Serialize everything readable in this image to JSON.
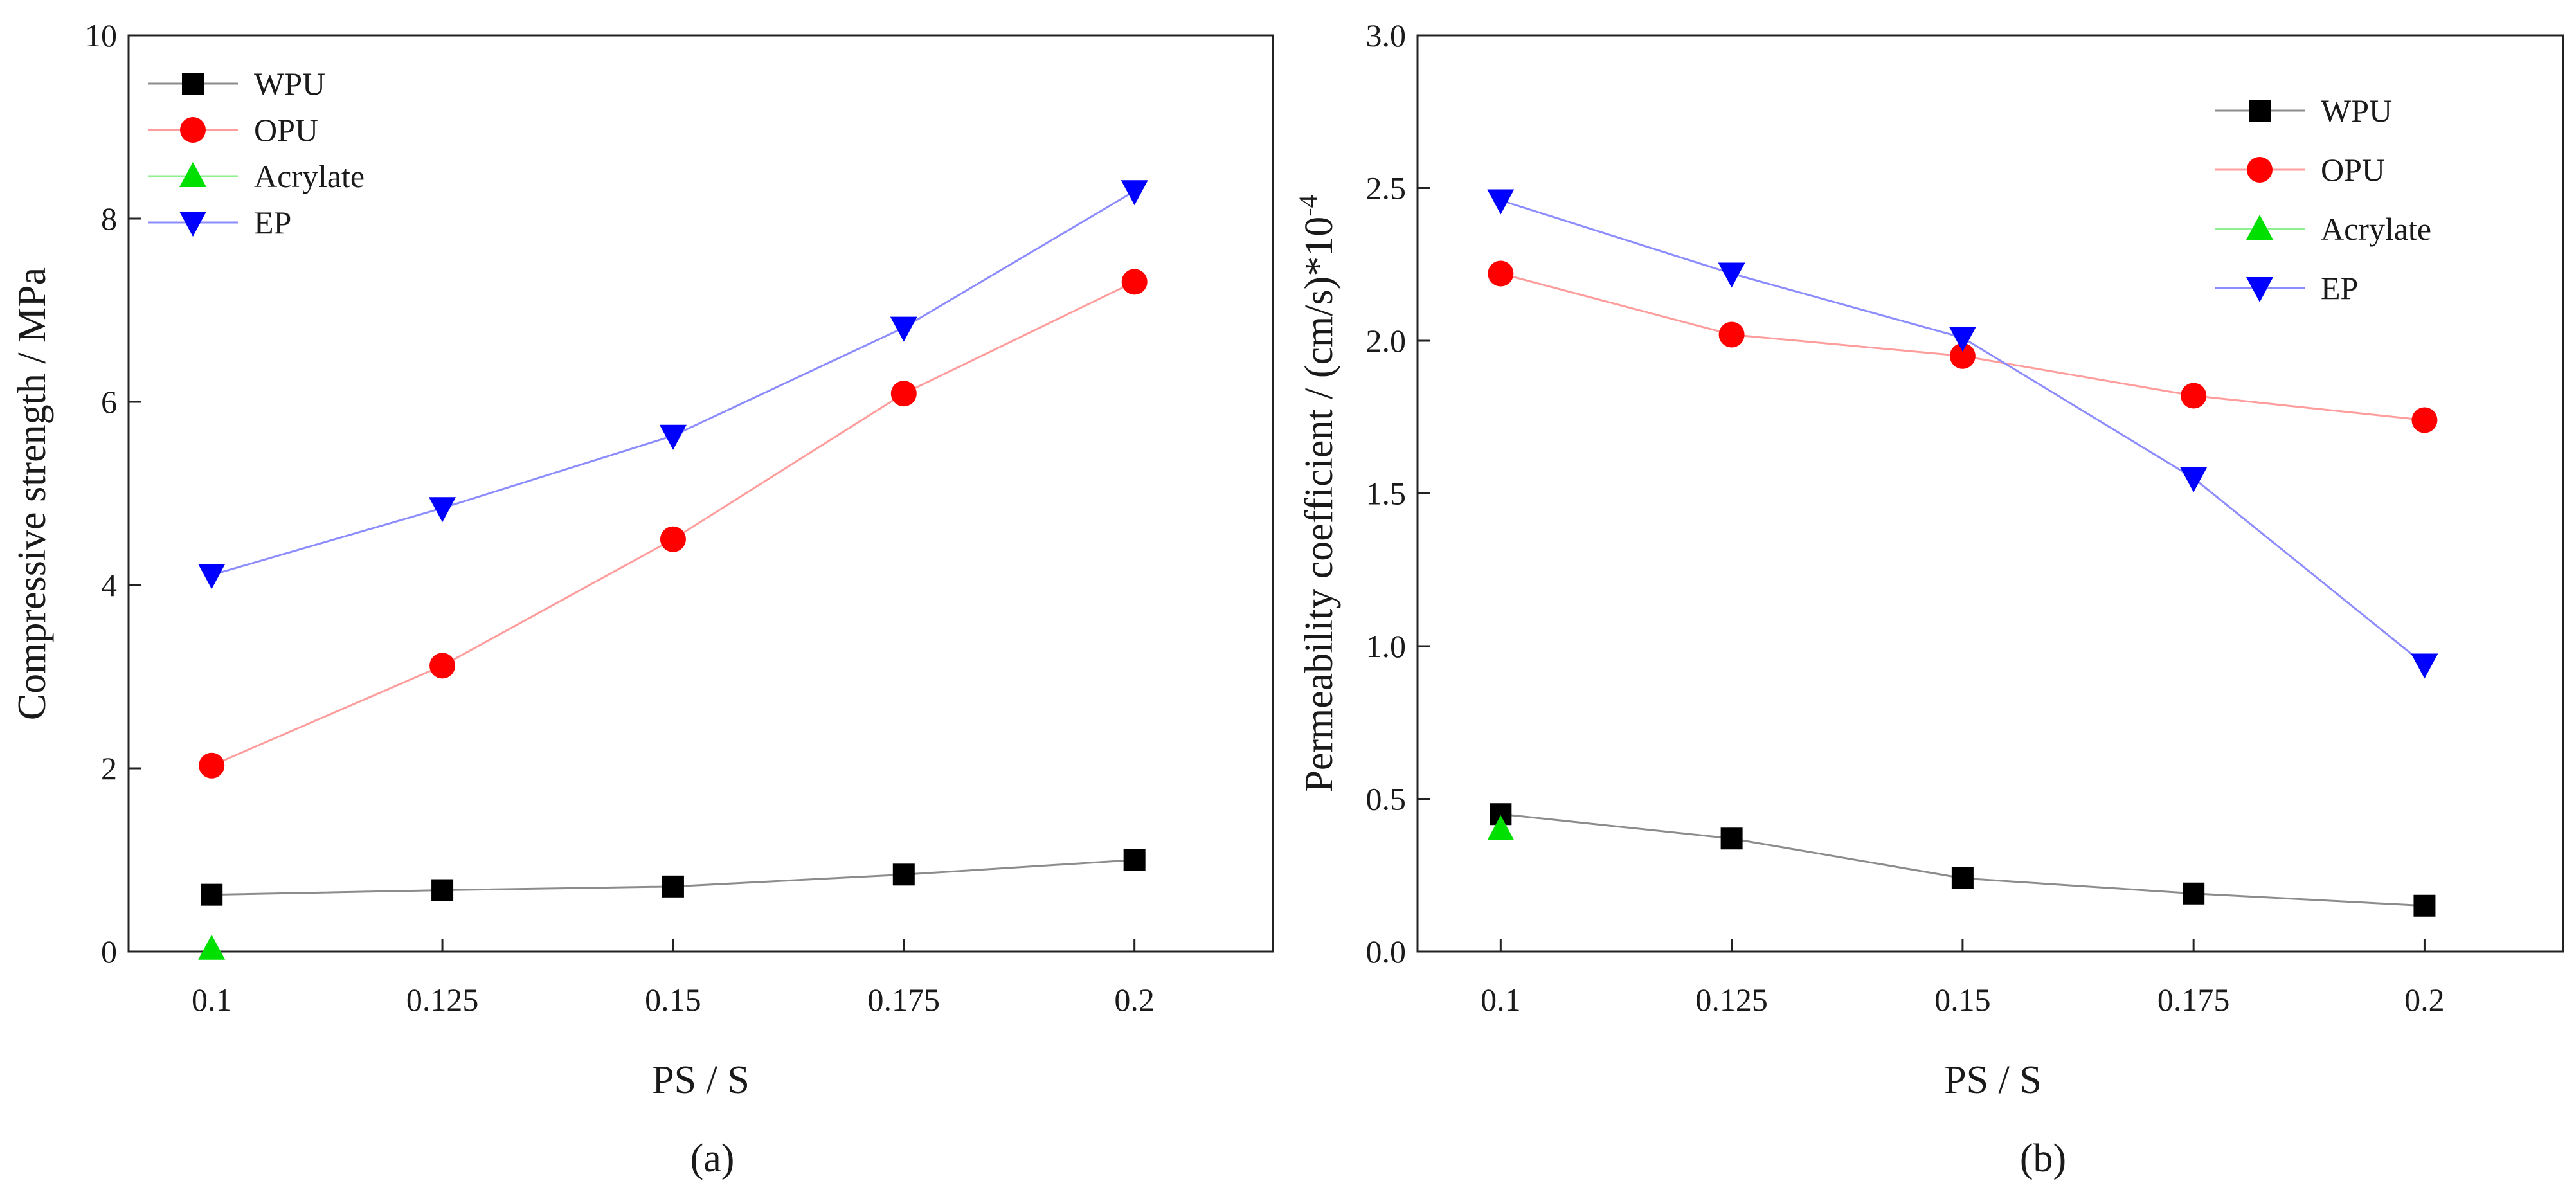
{
  "chart_data": [
    {
      "id": "a",
      "type": "line",
      "caption": "(a)",
      "xlabel": "PS / S",
      "ylabel": "Compressive strength / MPa",
      "x": [
        0.1,
        0.125,
        0.15,
        0.175,
        0.2
      ],
      "x_tick_labels": [
        "0.1",
        "0.125",
        "0.15",
        "0.175",
        "0.2"
      ],
      "xlim": [
        0.091,
        0.215
      ],
      "ylim": [
        0,
        10
      ],
      "y_ticks": [
        0,
        2,
        4,
        6,
        8,
        10
      ],
      "y_tick_labels": [
        "0",
        "2",
        "4",
        "6",
        "8",
        "10"
      ],
      "legend_position": "top-left",
      "series": [
        {
          "name": "WPU",
          "marker": "square",
          "color": "#000000",
          "line_color": "#8c8c8c",
          "x": [
            0.1,
            0.125,
            0.15,
            0.175,
            0.2
          ],
          "values": [
            0.62,
            0.67,
            0.71,
            0.84,
            1.0
          ]
        },
        {
          "name": "OPU",
          "marker": "circle",
          "color": "#ff0000",
          "line_color": "#ff9c9c",
          "x": [
            0.1,
            0.125,
            0.15,
            0.175,
            0.2
          ],
          "values": [
            2.03,
            3.12,
            4.5,
            6.09,
            7.31
          ]
        },
        {
          "name": "Acrylate",
          "marker": "triangle-up",
          "color": "#00e000",
          "line_color": "#8ef08e",
          "x": [
            0.1
          ],
          "values": [
            0.03
          ]
        },
        {
          "name": "EP",
          "marker": "triangle-down",
          "color": "#0000ff",
          "line_color": "#8c8cff",
          "x": [
            0.1,
            0.125,
            0.15,
            0.175,
            0.2
          ],
          "values": [
            4.11,
            4.84,
            5.63,
            6.81,
            8.3
          ]
        }
      ]
    },
    {
      "id": "b",
      "type": "line",
      "caption": "(b)",
      "xlabel": "PS / S",
      "ylabel": "Permeability coefficient / (cm/s)*10",
      "ylabel_exp": "-4",
      "x": [
        0.1,
        0.125,
        0.15,
        0.175,
        0.2
      ],
      "x_tick_labels": [
        "0.1",
        "0.125",
        "0.15",
        "0.175",
        "0.2"
      ],
      "xlim": [
        0.091,
        0.215
      ],
      "ylim": [
        0,
        3.0
      ],
      "y_ticks": [
        0,
        0.5,
        1.0,
        1.5,
        2.0,
        2.5,
        3.0
      ],
      "y_tick_labels": [
        "0.0",
        "0.5",
        "1.0",
        "1.5",
        "2.0",
        "2.5",
        "3.0"
      ],
      "legend_position": "top-right",
      "series": [
        {
          "name": "WPU",
          "marker": "square",
          "color": "#000000",
          "line_color": "#8c8c8c",
          "x": [
            0.1,
            0.125,
            0.15,
            0.175,
            0.2
          ],
          "values": [
            0.45,
            0.37,
            0.24,
            0.19,
            0.15
          ]
        },
        {
          "name": "OPU",
          "marker": "circle",
          "color": "#ff0000",
          "line_color": "#ff9c9c",
          "x": [
            0.1,
            0.125,
            0.15,
            0.175,
            0.2
          ],
          "values": [
            2.22,
            2.02,
            1.95,
            1.82,
            1.74
          ]
        },
        {
          "name": "Acrylate",
          "marker": "triangle-up",
          "color": "#00e000",
          "line_color": "#8ef08e",
          "x": [
            0.1
          ],
          "values": [
            0.4
          ]
        },
        {
          "name": "EP",
          "marker": "triangle-down",
          "color": "#0000ff",
          "line_color": "#8c8cff",
          "x": [
            0.1,
            0.125,
            0.15,
            0.175,
            0.2
          ],
          "values": [
            2.46,
            2.22,
            2.01,
            1.55,
            0.94
          ]
        }
      ]
    }
  ]
}
